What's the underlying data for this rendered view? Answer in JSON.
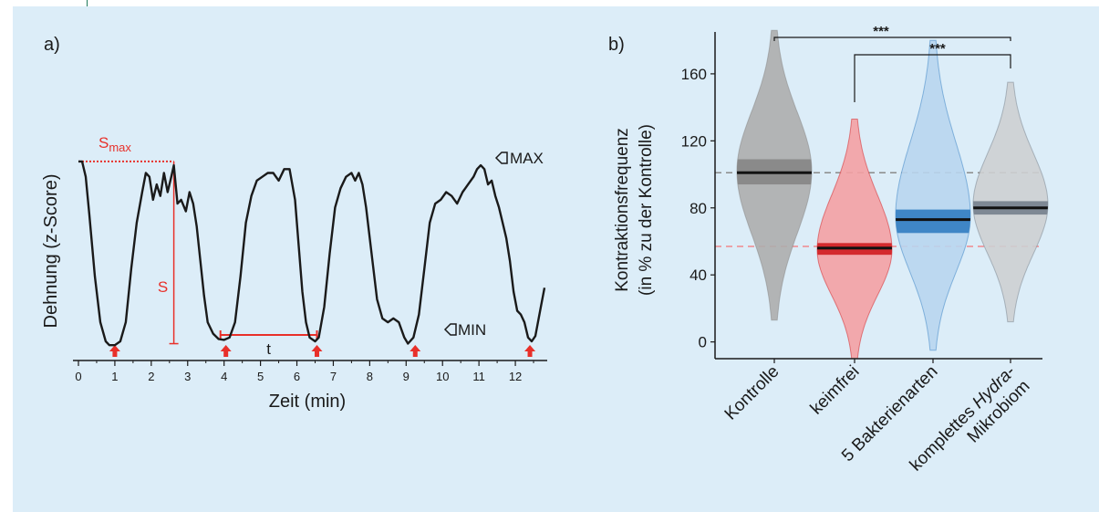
{
  "colors": {
    "background": "#dcedf8",
    "line": "#1a1a1a",
    "annotation_red": "#e8302a",
    "kontrolle": "#8c8c8c",
    "keimfrei": "#f08a8e",
    "bakterien": "#b4d2ec",
    "mikrobiom": "#c8c8c8"
  },
  "chart_data": [
    {
      "type": "line",
      "panel_label": "a)",
      "xlabel": "Zeit (min)",
      "ylabel": "Dehnung (z-Score)",
      "xlim": [
        0,
        12.8
      ],
      "ylim": [
        -1.6,
        1.5
      ],
      "x_ticks": [
        "0",
        "1",
        "2",
        "3",
        "4",
        "5",
        "6",
        "7",
        "8",
        "9",
        "10",
        "11",
        "12"
      ],
      "x": [
        0.0,
        0.1,
        0.2,
        0.3,
        0.45,
        0.6,
        0.75,
        0.85,
        1.0,
        1.15,
        1.3,
        1.45,
        1.6,
        1.75,
        1.85,
        1.95,
        2.05,
        2.15,
        2.25,
        2.35,
        2.45,
        2.55,
        2.62,
        2.72,
        2.82,
        2.95,
        3.05,
        3.15,
        3.25,
        3.35,
        3.45,
        3.55,
        3.7,
        3.85,
        4.0,
        4.15,
        4.3,
        4.45,
        4.6,
        4.75,
        4.9,
        5.05,
        5.2,
        5.35,
        5.5,
        5.65,
        5.8,
        5.95,
        6.05,
        6.15,
        6.25,
        6.35,
        6.5,
        6.6,
        6.75,
        6.9,
        7.05,
        7.2,
        7.35,
        7.5,
        7.6,
        7.7,
        7.8,
        7.9,
        8.05,
        8.2,
        8.35,
        8.5,
        8.65,
        8.8,
        8.95,
        9.05,
        9.2,
        9.35,
        9.5,
        9.65,
        9.8,
        9.95,
        10.1,
        10.25,
        10.4,
        10.55,
        10.7,
        10.85,
        10.95,
        11.05,
        11.15,
        11.25,
        11.35,
        11.45,
        11.55,
        11.65,
        11.75,
        11.85,
        11.95,
        12.05,
        12.15,
        12.25,
        12.35,
        12.45,
        12.55,
        12.7,
        12.8
      ],
      "y": [
        1.0,
        1.0,
        0.8,
        0.3,
        -0.5,
        -1.1,
        -1.35,
        -1.4,
        -1.4,
        -1.35,
        -1.1,
        -0.4,
        0.2,
        0.6,
        0.85,
        0.8,
        0.5,
        0.7,
        0.55,
        0.85,
        0.6,
        0.8,
        0.95,
        0.45,
        0.5,
        0.35,
        0.6,
        0.45,
        0.15,
        -0.3,
        -0.75,
        -1.1,
        -1.25,
        -1.32,
        -1.33,
        -1.3,
        -1.1,
        -0.5,
        0.2,
        0.55,
        0.75,
        0.8,
        0.85,
        0.85,
        0.75,
        0.9,
        0.9,
        0.5,
        -0.1,
        -0.7,
        -1.1,
        -1.3,
        -1.35,
        -1.3,
        -0.9,
        -0.2,
        0.4,
        0.65,
        0.8,
        0.85,
        0.75,
        0.85,
        0.7,
        0.4,
        -0.2,
        -0.8,
        -1.05,
        -1.1,
        -1.05,
        -1.1,
        -1.3,
        -1.38,
        -1.3,
        -1.0,
        -0.4,
        0.2,
        0.45,
        0.5,
        0.6,
        0.55,
        0.45,
        0.6,
        0.7,
        0.8,
        0.9,
        0.95,
        0.9,
        0.7,
        0.75,
        0.55,
        0.4,
        0.2,
        0.0,
        -0.3,
        -0.7,
        -0.95,
        -1.0,
        -1.1,
        -1.3,
        -1.35,
        -1.28,
        -0.9,
        -0.65
      ],
      "grid": false,
      "annotations": {
        "max_label": "MAX",
        "min_label": "MIN",
        "smax_label": "S",
        "smax_sub": "max",
        "s_label": "S",
        "t_label": "t",
        "arrow_x": [
          1.0,
          4.05,
          6.55,
          9.25,
          12.4
        ],
        "t_span": [
          3.9,
          6.55
        ],
        "smax_span": [
          0.0,
          2.62
        ],
        "s_at_x": 2.62
      }
    },
    {
      "type": "violin",
      "panel_label": "b)",
      "ylabel": "Kontraktionsfrequenz",
      "ylabel2": "(in % zu der Kontrolle)",
      "ylim": [
        -10,
        185
      ],
      "y_ticks": [
        "0",
        "40",
        "80",
        "120",
        "160"
      ],
      "grid": false,
      "categories": [
        "Kontrolle",
        "keimfrei",
        "5 Bakterienarten",
        "komplettes Hydra-Mikrobiom"
      ],
      "category_lines": [
        {
          "pre": "Kontrolle",
          "ital": "",
          "post": "",
          "line2": ""
        },
        {
          "pre": "keimfrei",
          "ital": "",
          "post": "",
          "line2": ""
        },
        {
          "pre": "5 Bakterienarten",
          "ital": "",
          "post": "",
          "line2": ""
        },
        {
          "pre": "komplettes ",
          "ital": "Hydra",
          "post": "-",
          "line2": "Mikrobiom"
        }
      ],
      "series": [
        {
          "min": 13,
          "max": 186,
          "median": 101,
          "q1": 94,
          "q3": 109,
          "peak": 102,
          "fill_dark": "#8a8a8a",
          "fill_light": "#adadad",
          "median_color": "#111111"
        },
        {
          "min": -10,
          "max": 133,
          "median": 56,
          "q1": 52,
          "q3": 59,
          "peak": 55,
          "fill_dark": "#d42a2e",
          "fill_light": "#f4a0a3",
          "median_color": "#111111"
        },
        {
          "min": -5,
          "max": 180,
          "median": 73,
          "q1": 65,
          "q3": 79,
          "peak": 75,
          "fill_dark": "#3f86c6",
          "fill_light": "#b8d5ee",
          "median_color": "#111111"
        },
        {
          "min": 12,
          "max": 155,
          "median": 80,
          "q1": 76,
          "q3": 84,
          "peak": 82,
          "fill_dark": "#7e8894",
          "fill_light": "#cdcfd2",
          "median_color": "#111111"
        }
      ],
      "reference_lines": [
        {
          "value": 101,
          "color": "#8a8a8a"
        },
        {
          "value": 57,
          "color": "#f08a8e"
        }
      ],
      "significance": [
        {
          "from": 0,
          "to": 3,
          "label": "***"
        },
        {
          "from": 1,
          "to": 3,
          "label": "***"
        }
      ]
    }
  ]
}
